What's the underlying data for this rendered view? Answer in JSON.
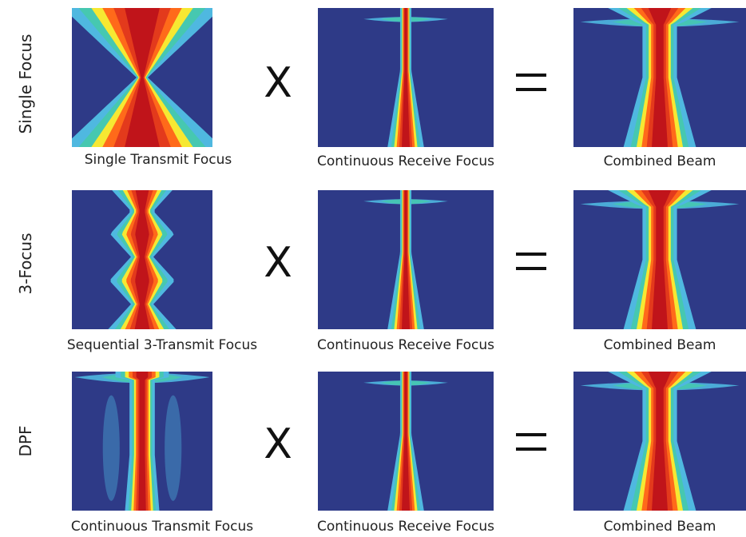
{
  "colors": {
    "background": "#2e3a87",
    "beam_hot": "#c0141a",
    "beam_warm": "#ff6a1a",
    "beam_mid": "#f6e832",
    "beam_cool": "#4fb8e0"
  },
  "operators": {
    "multiply": "X",
    "equals": "="
  },
  "rows": [
    {
      "label": "Single Focus",
      "transmit_caption": "Single Transmit Focus",
      "transmit_pattern": "single-focus",
      "receive_caption": "Continuous Receive Focus",
      "combined_caption": "Combined Beam"
    },
    {
      "label": "3-Focus",
      "transmit_caption": "Sequential 3-Transmit Focus",
      "transmit_pattern": "three-focus",
      "receive_caption": "Continuous Receive Focus",
      "combined_caption": "Combined Beam"
    },
    {
      "label": "DPF",
      "transmit_caption": "Continuous Transmit Focus",
      "transmit_pattern": "continuous-focus",
      "receive_caption": "Continuous Receive Focus",
      "combined_caption": "Combined Beam"
    }
  ]
}
